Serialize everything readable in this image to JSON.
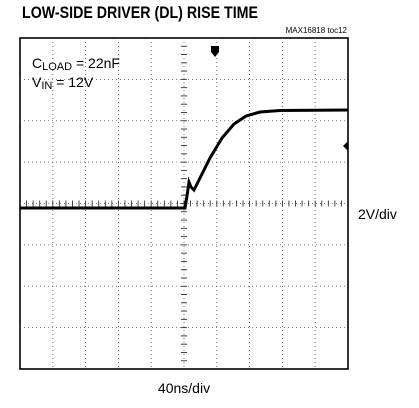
{
  "header": {
    "title": "LOW-SIDE DRIVER (DL) RISE TIME",
    "figure_id": "MAX16818 toc12"
  },
  "annotations": [
    {
      "symbol": "C",
      "subscript": "LOAD",
      "text": " = 22nF"
    },
    {
      "symbol": "V",
      "subscript": "IN",
      "text": " = 12V"
    }
  ],
  "scales": {
    "vertical": "2V/div",
    "horizontal": "40ns/div"
  }
}
